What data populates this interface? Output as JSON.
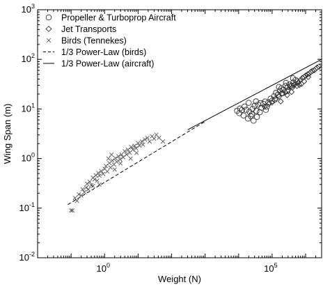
{
  "chart_data": {
    "type": "scatter",
    "xlabel": "Weight (N)",
    "ylabel": "Wing Span (m)",
    "x_scale": "log",
    "y_scale": "log",
    "xlim": [
      0.01,
      3000000
    ],
    "ylim": [
      0.01,
      1000
    ],
    "x_ticks": [
      {
        "value": 1,
        "base": "10",
        "exp": "0"
      },
      {
        "value": 100000,
        "base": "10",
        "exp": "5"
      }
    ],
    "y_ticks": [
      {
        "value": 0.01,
        "base": "10",
        "exp": "-2"
      },
      {
        "value": 0.1,
        "base": "10",
        "exp": "-1"
      },
      {
        "value": 1,
        "base": "10",
        "exp": "0"
      },
      {
        "value": 10,
        "base": "10",
        "exp": "1"
      },
      {
        "value": 100,
        "base": "10",
        "exp": "2"
      },
      {
        "value": 1000,
        "base": "10",
        "exp": "3"
      }
    ],
    "grid": false,
    "legend_position": "top-left",
    "series": [
      {
        "name": "Propeller & Turboprop Aircraft",
        "marker": "circle",
        "points": [
          [
            9000,
            9.2
          ],
          [
            10500,
            8.2
          ],
          [
            11000,
            10.2
          ],
          [
            12500,
            9.5
          ],
          [
            14000,
            7.4
          ],
          [
            15000,
            11.2
          ],
          [
            17000,
            9.6
          ],
          [
            19000,
            6.4
          ],
          [
            20000,
            13.3
          ],
          [
            21000,
            8.8
          ],
          [
            23000,
            7.2
          ],
          [
            26000,
            10.1
          ],
          [
            28000,
            5.8
          ],
          [
            30000,
            11.6
          ],
          [
            34000,
            9.1
          ],
          [
            38000,
            12.2
          ],
          [
            43000,
            8.6
          ],
          [
            48000,
            10.6
          ],
          [
            55000,
            12.6
          ],
          [
            62000,
            14.1
          ],
          [
            70000,
            11.2
          ],
          [
            78000,
            13.6
          ],
          [
            90000,
            16.1
          ],
          [
            100000,
            14.6
          ],
          [
            115000,
            18.2
          ],
          [
            130000,
            21.1
          ],
          [
            150000,
            19.4
          ],
          [
            170000,
            23.2
          ],
          [
            190000,
            26.1
          ],
          [
            220000,
            24.2
          ],
          [
            250000,
            29.1
          ],
          [
            290000,
            27.6
          ],
          [
            330000,
            31.1
          ],
          [
            380000,
            29.6
          ],
          [
            430000,
            34.2
          ],
          [
            500000,
            38.3
          ],
          [
            570000,
            36.1
          ],
          [
            65000,
            9.6
          ],
          [
            25000,
            7.8
          ],
          [
            33000,
            14.2
          ],
          [
            45000,
            13.1
          ],
          [
            120000,
            15.4
          ],
          [
            200000,
            20.6
          ],
          [
            280000,
            22.8
          ],
          [
            35000,
            6.9
          ],
          [
            160000,
            27.8
          ],
          [
            260000,
            33.6
          ],
          [
            420000,
            41.5
          ]
        ]
      },
      {
        "name": "Jet Transports",
        "marker": "diamond",
        "points": [
          [
            60000,
            11.1
          ],
          [
            80000,
            12.6
          ],
          [
            100000,
            13.6
          ],
          [
            130000,
            16.2
          ],
          [
            160000,
            17.7
          ],
          [
            200000,
            20.6
          ],
          [
            250000,
            21.6
          ],
          [
            300000,
            24.2
          ],
          [
            350000,
            28.6
          ],
          [
            400000,
            27.1
          ],
          [
            450000,
            30.1
          ],
          [
            500000,
            32.6
          ],
          [
            600000,
            34.1
          ],
          [
            700000,
            38.1
          ],
          [
            800000,
            42.2
          ],
          [
            900000,
            44.1
          ],
          [
            1000000,
            47.1
          ],
          [
            1150000,
            50.1
          ],
          [
            1300000,
            52.1
          ],
          [
            1450000,
            56.1
          ],
          [
            1600000,
            58.6
          ],
          [
            1800000,
            60.1
          ],
          [
            2000000,
            64.2
          ],
          [
            2200000,
            68.1
          ],
          [
            2500000,
            71.1
          ],
          [
            1200000,
            44.2
          ],
          [
            750000,
            32.1
          ],
          [
            550000,
            29.1
          ],
          [
            380000,
            22.1
          ],
          [
            280000,
            19.1
          ],
          [
            180000,
            14.2
          ],
          [
            900000,
            36.1
          ],
          [
            650000,
            30.6
          ]
        ]
      },
      {
        "name": "Birds (Tennekes)",
        "marker": "x",
        "points": [
          [
            0.1,
            0.09
          ],
          [
            0.11,
            0.09
          ],
          [
            0.13,
            0.16
          ],
          [
            0.15,
            0.14
          ],
          [
            0.17,
            0.19
          ],
          [
            0.2,
            0.18
          ],
          [
            0.22,
            0.24
          ],
          [
            0.25,
            0.21
          ],
          [
            0.28,
            0.26
          ],
          [
            0.3,
            0.31
          ],
          [
            0.33,
            0.24
          ],
          [
            0.36,
            0.34
          ],
          [
            0.4,
            0.29
          ],
          [
            0.45,
            0.41
          ],
          [
            0.5,
            0.38
          ],
          [
            0.55,
            0.46
          ],
          [
            0.6,
            0.36
          ],
          [
            0.65,
            0.51
          ],
          [
            0.7,
            0.45
          ],
          [
            0.8,
            0.56
          ],
          [
            0.9,
            0.49
          ],
          [
            1.0,
            0.62
          ],
          [
            1.1,
            0.71
          ],
          [
            1.2,
            0.55
          ],
          [
            1.4,
            0.81
          ],
          [
            1.5,
            0.66
          ],
          [
            1.7,
            0.91
          ],
          [
            1.9,
            0.76
          ],
          [
            2.1,
            1.01
          ],
          [
            2.3,
            0.86
          ],
          [
            2.6,
            1.11
          ],
          [
            2.9,
            0.96
          ],
          [
            3.2,
            1.21
          ],
          [
            3.6,
            1.06
          ],
          [
            4.0,
            1.41
          ],
          [
            4.5,
            1.21
          ],
          [
            5.0,
            1.51
          ],
          [
            5.6,
            1.31
          ],
          [
            6.2,
            1.71
          ],
          [
            7.0,
            1.51
          ],
          [
            7.8,
            1.81
          ],
          [
            8.7,
            1.61
          ],
          [
            10,
            2.05
          ],
          [
            11,
            1.81
          ],
          [
            13,
            2.21
          ],
          [
            14,
            1.91
          ],
          [
            16,
            2.41
          ],
          [
            19,
            2.61
          ],
          [
            22,
            2.21
          ],
          [
            26,
            2.81
          ],
          [
            30,
            2.51
          ],
          [
            35,
            3.01
          ],
          [
            42,
            2.62
          ],
          [
            55,
            2.21
          ],
          [
            0.7,
            0.3
          ],
          [
            1.3,
            1.0
          ],
          [
            2.0,
            0.6
          ],
          [
            3.0,
            0.8
          ],
          [
            6.0,
            1.0
          ],
          [
            9.0,
            1.3
          ],
          [
            0.45,
            0.28
          ],
          [
            1.6,
            1.2
          ]
        ]
      },
      {
        "name": "1/3 Power-Law (birds)",
        "marker": "dash-line",
        "points": [
          [
            0.08,
            0.118
          ],
          [
            1000,
            5.6
          ]
        ]
      },
      {
        "name": "1/3 Power-Law (aircraft)",
        "marker": "solid-line",
        "points": [
          [
            300,
            3.8
          ],
          [
            3000000,
            100
          ]
        ]
      }
    ]
  }
}
